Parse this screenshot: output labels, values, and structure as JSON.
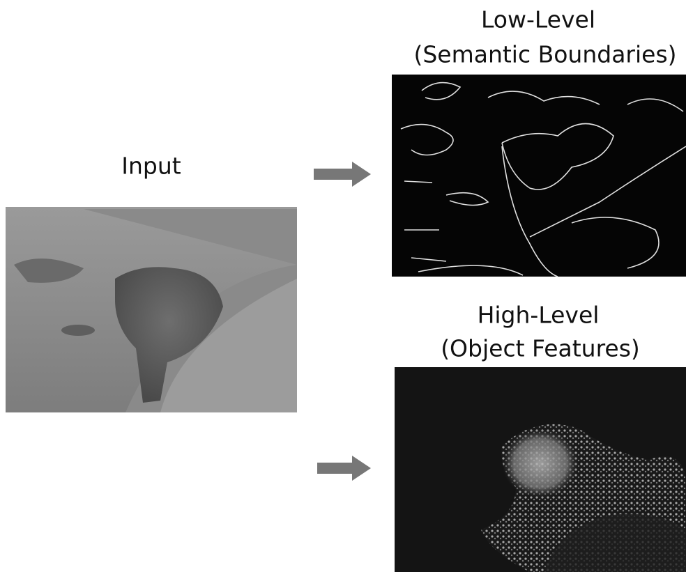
{
  "input": {
    "label": "Input"
  },
  "outputs": [
    {
      "title": "Low-Level",
      "subtitle": "(Semantic Boundaries)"
    },
    {
      "title": "High-Level",
      "subtitle": "(Object Features)"
    }
  ]
}
